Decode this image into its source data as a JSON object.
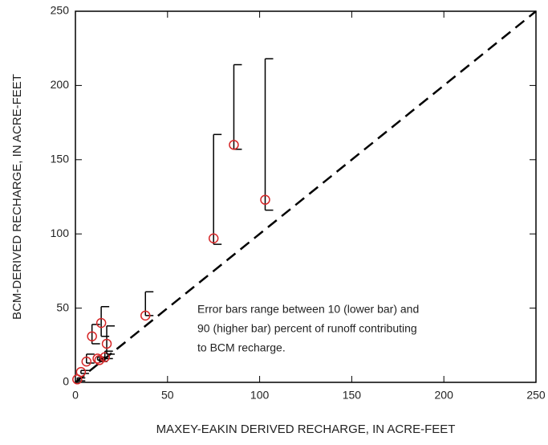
{
  "chart_data": {
    "type": "scatter",
    "x_label": "MAXEY-EAKIN DERIVED RECHARGE, IN ACRE-FEET",
    "y_label": "BCM-DERIVED RECHARGE, IN ACRE-FEET",
    "annotation": [
      "Error bars range between 10 (lower bar) and",
      "90 (higher bar) percent of runoff contributing",
      "to BCM recharge."
    ],
    "xlim": [
      0,
      250
    ],
    "ylim": [
      0,
      250
    ],
    "xticks": [
      0,
      50,
      100,
      150,
      200,
      250
    ],
    "yticks": [
      0,
      50,
      100,
      150,
      200,
      250
    ],
    "reference_line": "dashed",
    "series": [
      {
        "color": "#d62728",
        "bar_color": "#000000",
        "x": [
          1,
          3,
          6,
          9,
          12,
          13,
          14,
          16,
          17,
          38,
          75,
          86,
          103
        ],
        "y": [
          2,
          7,
          14,
          31,
          16,
          15,
          40,
          17,
          26,
          45,
          97,
          160,
          123
        ],
        "low": [
          1,
          6,
          13,
          26,
          15,
          14,
          31,
          16,
          19,
          45,
          93,
          157,
          116
        ],
        "high": [
          3,
          8,
          19,
          39,
          17,
          16,
          51,
          21,
          38,
          61,
          167,
          214,
          218
        ]
      }
    ]
  }
}
